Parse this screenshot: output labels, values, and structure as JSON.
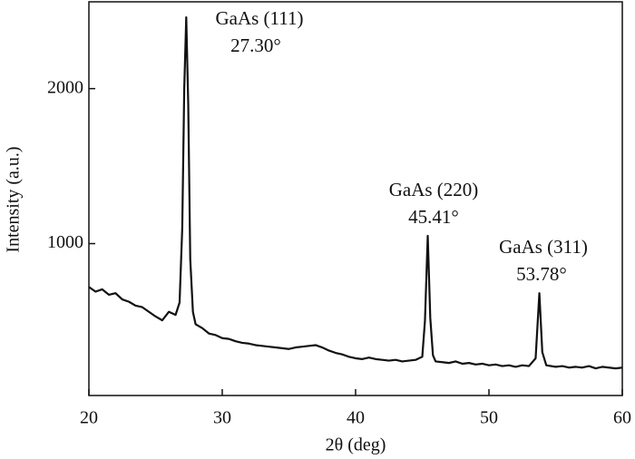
{
  "chart_data": {
    "type": "line",
    "x_label": "2θ (deg)",
    "y_label": "Intensity (a.u.)",
    "xlim": [
      20,
      60
    ],
    "xticks": [
      20,
      30,
      40,
      50,
      60
    ],
    "ylim": [
      20,
      2560
    ],
    "yticks": [
      1000,
      2000
    ],
    "annotations": [
      [
        "GaAs (111)",
        "27.30°"
      ],
      [
        "GaAs (220)",
        "45.41°"
      ],
      [
        "GaAs (311)",
        "53.78°"
      ]
    ],
    "series": [
      {
        "color": "#111111",
        "x": [
          20,
          20.5,
          21,
          21.5,
          22,
          22.5,
          23,
          23.5,
          24,
          24.5,
          25,
          25.5,
          26,
          26.5,
          26.8,
          27.0,
          27.15,
          27.3,
          27.45,
          27.6,
          27.8,
          28,
          28.5,
          29,
          29.5,
          30,
          30.5,
          31,
          31.5,
          32,
          32.5,
          33,
          33.5,
          34,
          34.5,
          35,
          35.5,
          36,
          36.5,
          37,
          37.5,
          38,
          38.5,
          39,
          39.5,
          40,
          40.5,
          41,
          41.5,
          42,
          42.5,
          43,
          43.5,
          44,
          44.5,
          45,
          45.2,
          45.41,
          45.6,
          45.8,
          46,
          46.5,
          47,
          47.5,
          48,
          48.5,
          49,
          49.5,
          50,
          50.5,
          51,
          51.5,
          52,
          52.5,
          53,
          53.5,
          53.78,
          54,
          54.3,
          55,
          55.5,
          56,
          56.5,
          57,
          57.5,
          58,
          58.5,
          59,
          59.5,
          60
        ],
        "values": [
          720,
          690,
          705,
          670,
          680,
          640,
          625,
          600,
          590,
          560,
          530,
          505,
          560,
          540,
          620,
          1100,
          2000,
          2460,
          1900,
          900,
          560,
          480,
          455,
          420,
          410,
          390,
          385,
          370,
          360,
          355,
          345,
          340,
          335,
          330,
          325,
          320,
          330,
          335,
          340,
          345,
          330,
          310,
          295,
          285,
          270,
          260,
          255,
          265,
          255,
          250,
          245,
          250,
          240,
          245,
          250,
          270,
          500,
          1050,
          520,
          280,
          240,
          235,
          230,
          240,
          225,
          230,
          220,
          225,
          215,
          220,
          210,
          215,
          205,
          215,
          210,
          260,
          680,
          300,
          215,
          205,
          210,
          200,
          205,
          200,
          210,
          195,
          205,
          200,
          195,
          200
        ]
      }
    ]
  }
}
